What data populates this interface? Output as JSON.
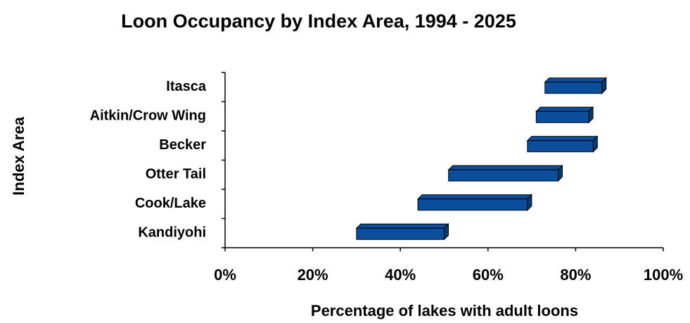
{
  "chart_data": {
    "type": "floating-bar",
    "title": "Loon Occupancy by Index Area, 1994 - 2025",
    "x_label": "Percentage of lakes with adult loons",
    "y_label": "Index Area",
    "categories": [
      "Itasca",
      "Aitkin/Crow Wing",
      "Becker",
      "Otter Tail",
      "Cook/Lake",
      "Kandiyohi"
    ],
    "start": [
      73,
      71,
      69,
      51,
      44,
      30
    ],
    "end": [
      86,
      83,
      84,
      76,
      69,
      50
    ],
    "color": "#0b4f9c",
    "xlim": [
      0,
      100
    ],
    "xticks": [
      {
        "value": 0,
        "label": "0%"
      },
      {
        "value": 20,
        "label": "20%"
      },
      {
        "value": 40,
        "label": "40%"
      },
      {
        "value": 60,
        "label": "60%"
      },
      {
        "value": 80,
        "label": "80%"
      },
      {
        "value": 100,
        "label": "100%"
      }
    ]
  }
}
